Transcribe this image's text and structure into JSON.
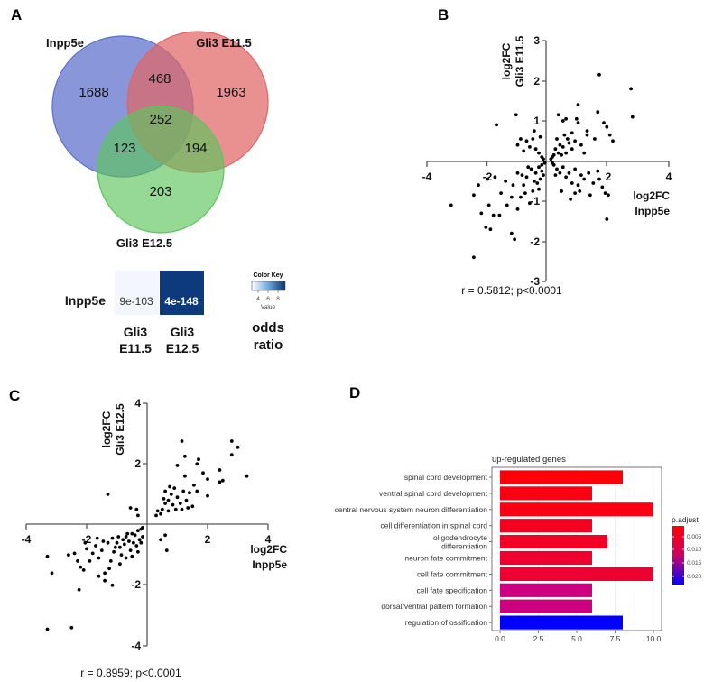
{
  "panel_labels": [
    "A",
    "B",
    "C",
    "D"
  ],
  "venn": {
    "sets": [
      "Inpp5e",
      "Gli3 E11.5",
      "Gli3 E12.5"
    ],
    "colors": [
      "#5b6fcc",
      "#e06666",
      "#5cc45c"
    ],
    "regions": {
      "inpp5e_only": "1688",
      "inpp5e_gli3e115": "468",
      "gli3e115_only": "1963",
      "all_three": "252",
      "inpp5e_gli3e125": "123",
      "gli3e115_gli3e125": "194",
      "gli3e125_only": "203"
    }
  },
  "heatmap": {
    "row_label": "Inpp5e",
    "columns": [
      {
        "line1": "Gli3",
        "line2": "E11.5",
        "value": "9e-103",
        "color": "#f3f7fd",
        "text_color": "#333333"
      },
      {
        "line1": "Gli3",
        "line2": "E12.5",
        "value": "4e-148",
        "color": "#0d3a7c",
        "text_color": "#ffffff"
      }
    ],
    "color_key": {
      "title": "Color Key",
      "ticks": [
        "4",
        "6",
        "8"
      ],
      "value_label": "Value",
      "metric_line1": "odds",
      "metric_line2": "ratio"
    }
  },
  "chart_data": [
    {
      "type": "scatter",
      "panel": "B",
      "xlabel": [
        "log2FC",
        "Inpp5e"
      ],
      "ylabel": [
        "log2FC",
        "Gli3 E11.5"
      ],
      "xlim": [
        -4,
        4
      ],
      "ylim": [
        -3,
        3
      ],
      "xticks": [
        "-4",
        "-2",
        "2",
        "4"
      ],
      "yticks": [
        "3",
        "2",
        "1",
        "-1",
        "-2",
        "-3"
      ],
      "annotation": "r = 0.5812; p<0.0001",
      "points": [
        [
          1.7,
          2.15
        ],
        [
          2.75,
          1.8
        ],
        [
          2.8,
          1.1
        ],
        [
          1.0,
          1.4
        ],
        [
          1.65,
          1.22
        ],
        [
          1.85,
          0.95
        ],
        [
          2.05,
          0.65
        ],
        [
          2.15,
          0.5
        ],
        [
          1.95,
          0.85
        ],
        [
          -1.05,
          1.15
        ],
        [
          -1.7,
          0.9
        ],
        [
          0.35,
          1.15
        ],
        [
          0.5,
          1.0
        ],
        [
          0.6,
          1.05
        ],
        [
          0.95,
          1.05
        ],
        [
          1.0,
          0.95
        ],
        [
          1.3,
          0.65
        ],
        [
          1.3,
          0.75
        ],
        [
          1.55,
          0.55
        ],
        [
          0.8,
          0.7
        ],
        [
          0.9,
          0.5
        ],
        [
          0.55,
          0.65
        ],
        [
          0.4,
          0.4
        ],
        [
          0.3,
          0.55
        ],
        [
          0.25,
          0.3
        ],
        [
          0.5,
          0.35
        ],
        [
          0.6,
          0.2
        ],
        [
          0.7,
          0.45
        ],
        [
          0.2,
          0.15
        ],
        [
          0.15,
          0.1
        ],
        [
          0.35,
          0.2
        ],
        [
          0.45,
          0.15
        ],
        [
          0.8,
          0.3
        ],
        [
          1.1,
          0.4
        ],
        [
          1.2,
          0.2
        ],
        [
          0.65,
          0.55
        ],
        [
          0.1,
          0.05
        ],
        [
          -0.2,
          0.1
        ],
        [
          -0.3,
          0.2
        ],
        [
          -0.4,
          0.3
        ],
        [
          -0.15,
          0.05
        ],
        [
          -0.5,
          0.55
        ],
        [
          -0.7,
          0.5
        ],
        [
          -0.9,
          0.55
        ],
        [
          -0.45,
          0.75
        ],
        [
          -0.25,
          0.6
        ],
        [
          -0.8,
          0.25
        ],
        [
          -1.0,
          0.4
        ],
        [
          -0.6,
          0.35
        ],
        [
          -3.2,
          -1.1
        ],
        [
          -2.45,
          -2.4
        ],
        [
          -2.45,
          -0.85
        ],
        [
          -2.3,
          -0.6
        ],
        [
          -2.2,
          -1.3
        ],
        [
          -2.05,
          -1.65
        ],
        [
          -1.9,
          -1.7
        ],
        [
          -1.95,
          -1.1
        ],
        [
          -1.8,
          -1.35
        ],
        [
          -1.6,
          -1.35
        ],
        [
          -1.55,
          -0.8
        ],
        [
          -1.35,
          -1.1
        ],
        [
          -1.2,
          -1.8
        ],
        [
          -1.1,
          -1.95
        ],
        [
          -1.0,
          -1.2
        ],
        [
          -1.15,
          -0.6
        ],
        [
          -1.4,
          -0.5
        ],
        [
          -1.75,
          -0.4
        ],
        [
          -2.0,
          -0.45
        ],
        [
          -0.9,
          -0.9
        ],
        [
          -0.8,
          -0.6
        ],
        [
          -0.7,
          -0.4
        ],
        [
          -0.6,
          -1.05
        ],
        [
          -0.5,
          -0.75
        ],
        [
          -0.4,
          -0.3
        ],
        [
          -0.3,
          -0.15
        ],
        [
          -0.2,
          -0.1
        ],
        [
          -0.15,
          -0.35
        ],
        [
          -0.1,
          -0.05
        ],
        [
          -0.55,
          -0.2
        ],
        [
          -0.35,
          -0.55
        ],
        [
          -0.25,
          -0.45
        ],
        [
          -0.65,
          -0.15
        ],
        [
          -0.75,
          -0.8
        ],
        [
          -1.0,
          -0.3
        ],
        [
          -0.45,
          -0.5
        ],
        [
          -1.2,
          -0.9
        ],
        [
          -0.85,
          -0.35
        ],
        [
          -0.3,
          -0.7
        ],
        [
          -0.2,
          -0.25
        ],
        [
          1.95,
          -1.45
        ],
        [
          1.9,
          -0.8
        ],
        [
          1.8,
          -0.65
        ],
        [
          2.0,
          -0.85
        ],
        [
          0.75,
          -0.95
        ],
        [
          1.4,
          -0.85
        ],
        [
          0.2,
          -0.1
        ],
        [
          0.3,
          -0.2
        ],
        [
          0.4,
          -0.3
        ],
        [
          0.5,
          -0.15
        ],
        [
          0.6,
          -0.4
        ],
        [
          0.7,
          -0.3
        ],
        [
          0.8,
          -0.55
        ],
        [
          0.9,
          -0.2
        ],
        [
          1.0,
          -0.6
        ],
        [
          1.1,
          -0.35
        ],
        [
          1.2,
          -0.45
        ],
        [
          1.35,
          -0.3
        ],
        [
          1.5,
          -0.55
        ],
        [
          1.65,
          -0.25
        ],
        [
          1.7,
          -0.45
        ],
        [
          0.45,
          -0.75
        ],
        [
          0.9,
          -0.8
        ],
        [
          1.05,
          -0.75
        ],
        [
          0.25,
          -0.35
        ],
        [
          0.15,
          -0.05
        ]
      ]
    },
    {
      "type": "scatter",
      "panel": "C",
      "xlabel": [
        "log2FC",
        "Inpp5e"
      ],
      "ylabel": [
        "log2FC",
        "Gli3 E12.5"
      ],
      "xlim": [
        -4,
        4
      ],
      "ylim": [
        -4,
        4
      ],
      "xticks": [
        "-4",
        "-2",
        "2",
        "4"
      ],
      "yticks": [
        "4",
        "2",
        "-2",
        "-4"
      ],
      "annotation": "r = 0.8959; p<0.0001",
      "points": [
        [
          1.15,
          2.75
        ],
        [
          2.8,
          2.75
        ],
        [
          3.0,
          2.55
        ],
        [
          2.8,
          2.3
        ],
        [
          1.25,
          2.25
        ],
        [
          1.7,
          2.15
        ],
        [
          1.65,
          2.0
        ],
        [
          1.0,
          1.95
        ],
        [
          1.85,
          1.7
        ],
        [
          3.3,
          1.6
        ],
        [
          2.4,
          1.8
        ],
        [
          2.5,
          1.45
        ],
        [
          2.4,
          1.4
        ],
        [
          2.0,
          1.5
        ],
        [
          2.0,
          0.95
        ],
        [
          1.25,
          1.6
        ],
        [
          -1.3,
          1.0
        ],
        [
          -0.55,
          0.55
        ],
        [
          -0.35,
          0.5
        ],
        [
          -0.3,
          0.3
        ],
        [
          0.3,
          0.3
        ],
        [
          0.35,
          0.45
        ],
        [
          0.5,
          0.5
        ],
        [
          0.6,
          0.7
        ],
        [
          0.7,
          0.8
        ],
        [
          0.8,
          1.0
        ],
        [
          0.9,
          1.2
        ],
        [
          1.0,
          0.9
        ],
        [
          1.1,
          0.7
        ],
        [
          1.2,
          1.1
        ],
        [
          1.3,
          0.8
        ],
        [
          1.4,
          1.05
        ],
        [
          1.5,
          0.6
        ],
        [
          1.55,
          1.3
        ],
        [
          1.65,
          1.1
        ],
        [
          0.6,
          1.1
        ],
        [
          0.75,
          1.25
        ],
        [
          0.95,
          0.5
        ],
        [
          0.45,
          0.35
        ],
        [
          0.55,
          0.85
        ],
        [
          0.85,
          0.65
        ],
        [
          1.15,
          0.5
        ],
        [
          1.35,
          0.55
        ],
        [
          0.7,
          0.45
        ],
        [
          0.6,
          -0.35
        ],
        [
          0.45,
          -0.5
        ],
        [
          0.65,
          -0.85
        ],
        [
          -3.3,
          -3.45
        ],
        [
          -2.5,
          -3.4
        ],
        [
          -3.3,
          -1.05
        ],
        [
          -3.15,
          -1.6
        ],
        [
          -2.25,
          -2.15
        ],
        [
          -1.15,
          -2.0
        ],
        [
          -1.4,
          -1.85
        ],
        [
          -1.6,
          -1.7
        ],
        [
          -1.4,
          -1.6
        ],
        [
          -1.25,
          -1.45
        ],
        [
          -2.4,
          -0.95
        ],
        [
          -2.3,
          -1.2
        ],
        [
          -2.2,
          -1.4
        ],
        [
          -2.1,
          -1.5
        ],
        [
          -2.0,
          -0.8
        ],
        [
          -1.9,
          -1.2
        ],
        [
          -1.8,
          -0.95
        ],
        [
          -1.7,
          -0.7
        ],
        [
          -1.6,
          -1.1
        ],
        [
          -1.5,
          -0.85
        ],
        [
          -1.3,
          -0.6
        ],
        [
          -1.2,
          -1.2
        ],
        [
          -1.1,
          -0.9
        ],
        [
          -1.0,
          -0.6
        ],
        [
          -0.9,
          -0.75
        ],
        [
          -0.8,
          -0.5
        ],
        [
          -0.7,
          -0.4
        ],
        [
          -0.6,
          -0.55
        ],
        [
          -0.5,
          -0.3
        ],
        [
          -0.4,
          -0.35
        ],
        [
          -0.3,
          -0.2
        ],
        [
          -0.2,
          -0.15
        ],
        [
          -0.15,
          -0.4
        ],
        [
          -0.25,
          -0.5
        ],
        [
          -0.35,
          -0.7
        ],
        [
          -0.45,
          -0.6
        ],
        [
          -0.55,
          -0.85
        ],
        [
          -0.65,
          -0.3
        ],
        [
          -0.75,
          -0.65
        ],
        [
          -0.85,
          -1.0
        ],
        [
          -0.95,
          -0.4
        ],
        [
          -1.05,
          -0.75
        ],
        [
          -1.15,
          -0.45
        ],
        [
          -1.45,
          -0.55
        ],
        [
          -0.3,
          -0.9
        ],
        [
          -0.5,
          -1.05
        ],
        [
          -0.7,
          -1.1
        ],
        [
          -0.9,
          -1.3
        ],
        [
          -0.15,
          -0.1
        ],
        [
          -0.2,
          -0.6
        ],
        [
          -2.6,
          -1.0
        ],
        [
          -2.05,
          -0.6
        ],
        [
          -1.65,
          -0.45
        ]
      ]
    },
    {
      "type": "bar",
      "panel": "D",
      "orientation": "horizontal",
      "title": "up-regulated genes",
      "xlim": [
        0,
        10.5
      ],
      "xticks": [
        "0.0",
        "2.5",
        "5.0",
        "7.5",
        "10.0"
      ],
      "categories": [
        [
          "spinal cord development"
        ],
        [
          "ventral spinal cord development"
        ],
        [
          "central nervous system neuron differentiation"
        ],
        [
          "cell differentiation in spinal cord"
        ],
        [
          "oligodendrocyte",
          "differentiation"
        ],
        [
          "neuron fate commitment"
        ],
        [
          "cell fate commitment"
        ],
        [
          "cell fate specification"
        ],
        [
          "dorsal/ventral pattern formation"
        ],
        [
          "regulation of ossification"
        ]
      ],
      "values": [
        8,
        6,
        10,
        6,
        7,
        6,
        10,
        6,
        6,
        8
      ],
      "p_adjust": [
        0.001,
        0.0015,
        0.0015,
        0.003,
        0.0035,
        0.004,
        0.004,
        0.01,
        0.01,
        0.023
      ],
      "colors": [
        "#fe0008",
        "#fb0012",
        "#fb0012",
        "#f5001e",
        "#f20026",
        "#ee0030",
        "#ee0030",
        "#cc0080",
        "#cc0080",
        "#0000ff"
      ],
      "legend": {
        "title": "p.adjust",
        "ticks": [
          "0.005",
          "0.010",
          "0.015",
          "0.020"
        ],
        "position": "right",
        "high_color": "#ff0000",
        "low_color": "#0000ff"
      }
    }
  ]
}
